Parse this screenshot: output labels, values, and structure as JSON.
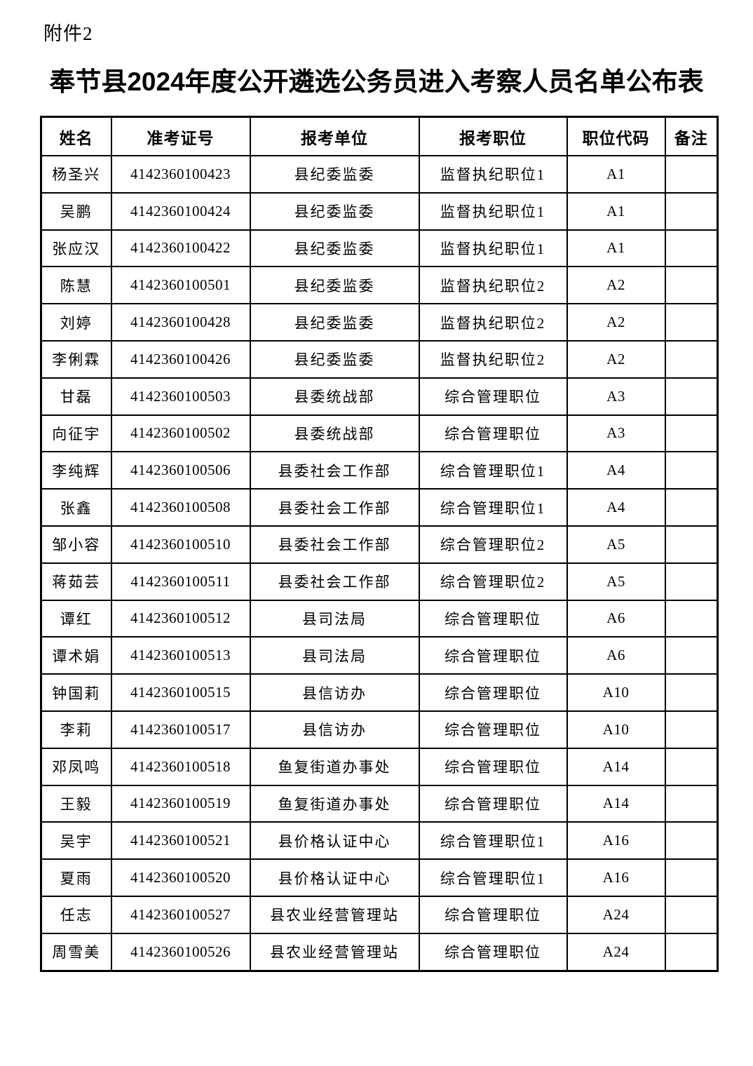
{
  "page": {
    "attachment_label": "附件2",
    "title": "奉节县2024年度公开遴选公务员进入考察人员名单公布表"
  },
  "colors": {
    "text": "#000000",
    "border": "#000000",
    "background": "#ffffff"
  },
  "table": {
    "columns": [
      "姓名",
      "准考证号",
      "报考单位",
      "报考职位",
      "职位代码",
      "备注"
    ],
    "rows": [
      {
        "name": "杨圣兴",
        "ticket": "4142360100423",
        "unit": "县纪委监委",
        "position": "监督执纪职位1",
        "code": "A1",
        "remark": ""
      },
      {
        "name": "吴鹏",
        "ticket": "4142360100424",
        "unit": "县纪委监委",
        "position": "监督执纪职位1",
        "code": "A1",
        "remark": ""
      },
      {
        "name": "张应汉",
        "ticket": "4142360100422",
        "unit": "县纪委监委",
        "position": "监督执纪职位1",
        "code": "A1",
        "remark": ""
      },
      {
        "name": "陈慧",
        "ticket": "4142360100501",
        "unit": "县纪委监委",
        "position": "监督执纪职位2",
        "code": "A2",
        "remark": ""
      },
      {
        "name": "刘婷",
        "ticket": "4142360100428",
        "unit": "县纪委监委",
        "position": "监督执纪职位2",
        "code": "A2",
        "remark": ""
      },
      {
        "name": "李俐霖",
        "ticket": "4142360100426",
        "unit": "县纪委监委",
        "position": "监督执纪职位2",
        "code": "A2",
        "remark": ""
      },
      {
        "name": "甘磊",
        "ticket": "4142360100503",
        "unit": "县委统战部",
        "position": "综合管理职位",
        "code": "A3",
        "remark": ""
      },
      {
        "name": "向征宇",
        "ticket": "4142360100502",
        "unit": "县委统战部",
        "position": "综合管理职位",
        "code": "A3",
        "remark": ""
      },
      {
        "name": "李纯辉",
        "ticket": "4142360100506",
        "unit": "县委社会工作部",
        "position": "综合管理职位1",
        "code": "A4",
        "remark": ""
      },
      {
        "name": "张鑫",
        "ticket": "4142360100508",
        "unit": "县委社会工作部",
        "position": "综合管理职位1",
        "code": "A4",
        "remark": ""
      },
      {
        "name": "邹小容",
        "ticket": "4142360100510",
        "unit": "县委社会工作部",
        "position": "综合管理职位2",
        "code": "A5",
        "remark": ""
      },
      {
        "name": "蒋茹芸",
        "ticket": "4142360100511",
        "unit": "县委社会工作部",
        "position": "综合管理职位2",
        "code": "A5",
        "remark": ""
      },
      {
        "name": "谭红",
        "ticket": "4142360100512",
        "unit": "县司法局",
        "position": "综合管理职位",
        "code": "A6",
        "remark": ""
      },
      {
        "name": "谭术娟",
        "ticket": "4142360100513",
        "unit": "县司法局",
        "position": "综合管理职位",
        "code": "A6",
        "remark": ""
      },
      {
        "name": "钟国莉",
        "ticket": "4142360100515",
        "unit": "县信访办",
        "position": "综合管理职位",
        "code": "A10",
        "remark": ""
      },
      {
        "name": "李莉",
        "ticket": "4142360100517",
        "unit": "县信访办",
        "position": "综合管理职位",
        "code": "A10",
        "remark": ""
      },
      {
        "name": "邓凤鸣",
        "ticket": "4142360100518",
        "unit": "鱼复街道办事处",
        "position": "综合管理职位",
        "code": "A14",
        "remark": ""
      },
      {
        "name": "王毅",
        "ticket": "4142360100519",
        "unit": "鱼复街道办事处",
        "position": "综合管理职位",
        "code": "A14",
        "remark": ""
      },
      {
        "name": "吴宇",
        "ticket": "4142360100521",
        "unit": "县价格认证中心",
        "position": "综合管理职位1",
        "code": "A16",
        "remark": ""
      },
      {
        "name": "夏雨",
        "ticket": "4142360100520",
        "unit": "县价格认证中心",
        "position": "综合管理职位1",
        "code": "A16",
        "remark": ""
      },
      {
        "name": "任志",
        "ticket": "4142360100527",
        "unit": "县农业经营管理站",
        "position": "综合管理职位",
        "code": "A24",
        "remark": ""
      },
      {
        "name": "周雪美",
        "ticket": "4142360100526",
        "unit": "县农业经营管理站",
        "position": "综合管理职位",
        "code": "A24",
        "remark": ""
      }
    ]
  }
}
